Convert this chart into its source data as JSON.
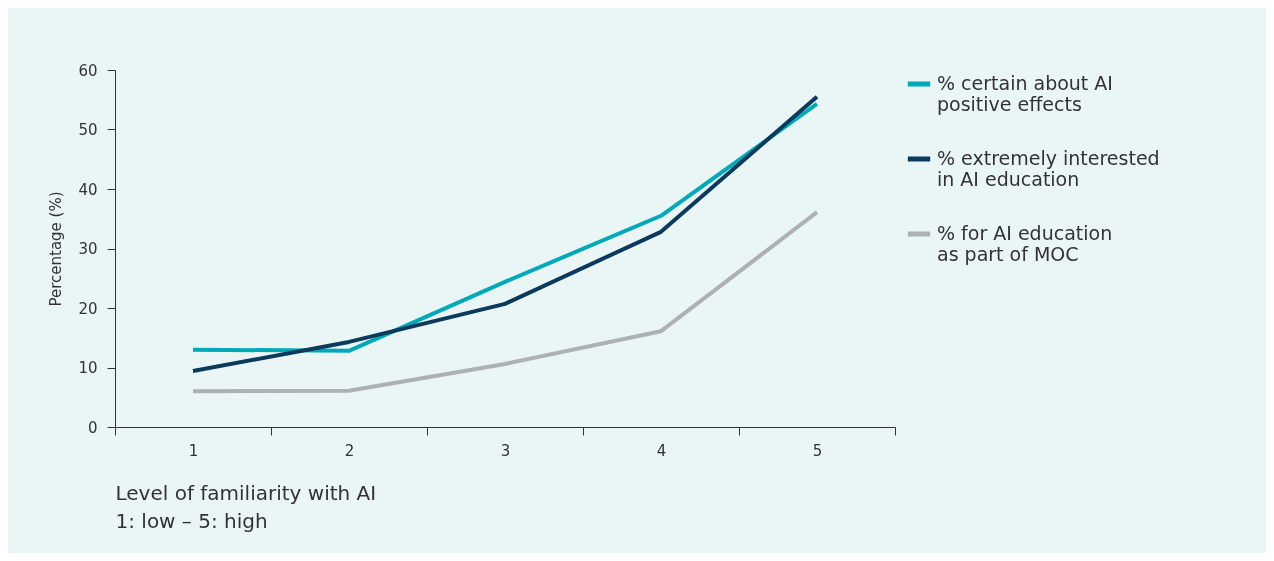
{
  "chart_data": {
    "type": "line",
    "xlabel": "Level of familiarity with AI\n1: low – 5: high",
    "ylabel": "Percentage (%)",
    "categories": [
      "1",
      "2",
      "3",
      "4",
      "5"
    ],
    "ylim": [
      0,
      60
    ],
    "yticks": [
      0,
      10,
      20,
      30,
      40,
      50,
      60
    ],
    "grid": false,
    "legend": "right",
    "marker": "none",
    "line_style": "solid",
    "series": [
      {
        "name": "% certain about AI positive effects",
        "color": "#00a9b7",
        "values": [
          13,
          12.8,
          24.4,
          35.5,
          54.3
        ]
      },
      {
        "name": "% extremely interested in AI education",
        "color": "#0b3a5d",
        "values": [
          9.4,
          14.3,
          20.7,
          32.8,
          55.5
        ]
      },
      {
        "name": "% for AI education as part of MOC",
        "color": "#aeb0b2",
        "values": [
          6,
          6.1,
          10.6,
          16.1,
          36.1
        ]
      }
    ]
  }
}
